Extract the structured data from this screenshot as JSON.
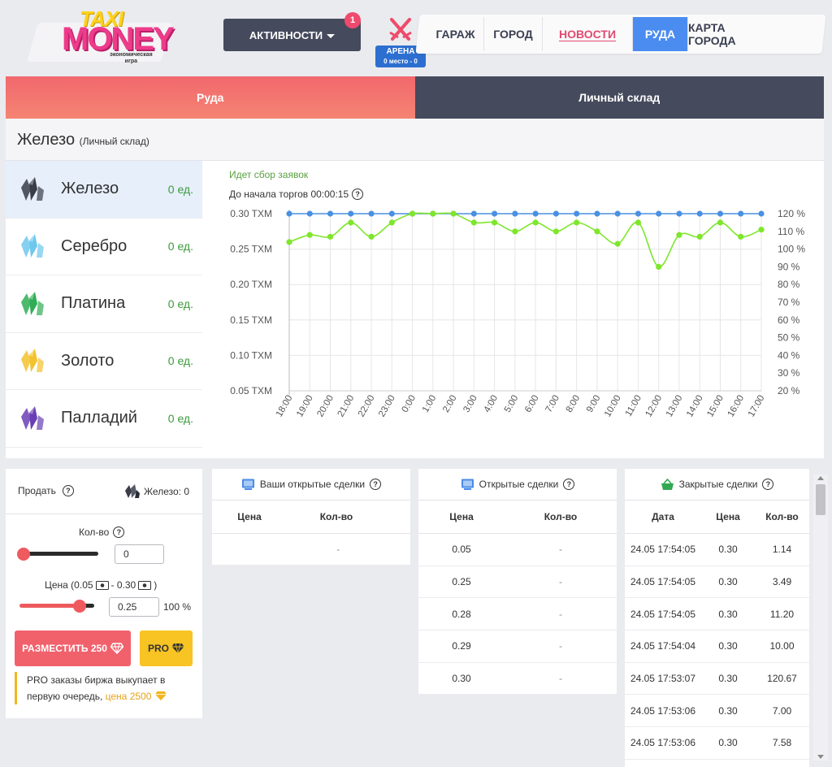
{
  "logo": {
    "taxi": "TAXI",
    "money": "MONEY",
    "subtitle_1": "экономическая",
    "subtitle_2": "игра"
  },
  "header": {
    "activities_label": "АКТИВНОСТИ",
    "activities_badge": "1",
    "arena_label": "АРЕНА",
    "arena_place": "0 место - 0",
    "nav": [
      "ГАРАЖ",
      "ГОРОД",
      "НОВОСТИ",
      "РУДА",
      "КАРТА ГОРОДА"
    ],
    "nav_active": "РУДА"
  },
  "tabs": {
    "ore": "Руда",
    "store": "Личный склад"
  },
  "panel": {
    "title": "Железо",
    "subtitle": "(Личный склад)"
  },
  "ores": [
    {
      "name": "Железо",
      "qty": "0 ед.",
      "icon": "iron-ore-icon",
      "color": "#3a3d47",
      "active": true
    },
    {
      "name": "Серебро",
      "qty": "0 ед.",
      "icon": "silver-ore-icon",
      "color": "#6ec8ee",
      "active": false
    },
    {
      "name": "Платина",
      "qty": "0 ед.",
      "icon": "platinum-ore-icon",
      "color": "#2fae55",
      "active": false
    },
    {
      "name": "Золото",
      "qty": "0 ед.",
      "icon": "gold-ore-icon",
      "color": "#f3c22d",
      "active": false
    },
    {
      "name": "Палладий",
      "qty": "0 ед.",
      "icon": "palladium-ore-icon",
      "color": "#6a3fb5",
      "active": false
    }
  ],
  "chart_status": "Идет сбор заявок",
  "chart_timer": "До начала торгов 00:00:15",
  "chart_data": {
    "type": "line",
    "x": [
      "18:00",
      "19:00",
      "20:00",
      "21:00",
      "22:00",
      "23:00",
      "0:00",
      "1:00",
      "2:00",
      "3:00",
      "4:00",
      "5:00",
      "6:00",
      "7:00",
      "8:00",
      "9:00",
      "10:00",
      "11:00",
      "12:00",
      "13:00",
      "14:00",
      "15:00",
      "16:00",
      "17:00"
    ],
    "y_left_ticks": [
      "0.30 TXM",
      "0.25 TXM",
      "0.20 TXM",
      "0.15 TXM",
      "0.10 TXM",
      "0.05 TXM"
    ],
    "y_left_lim": [
      0.05,
      0.3
    ],
    "y_right_ticks": [
      "120 %",
      "110 %",
      "100 %",
      "90 %",
      "80 %",
      "70 %",
      "60 %",
      "50 %",
      "40 %",
      "30 %",
      "20 %"
    ],
    "y_right_lim": [
      20,
      120
    ],
    "series": [
      {
        "color": "#4a90e2",
        "axis": "left",
        "values": [
          0.3,
          0.3,
          0.3,
          0.3,
          0.3,
          0.3,
          0.3,
          0.3,
          0.3,
          0.3,
          0.3,
          0.3,
          0.3,
          0.3,
          0.3,
          0.3,
          0.3,
          0.3,
          0.3,
          0.3,
          0.3,
          0.3,
          0.3,
          0.3
        ]
      },
      {
        "color": "#7ee62b",
        "axis": "right",
        "values": [
          104,
          108,
          107,
          115,
          107,
          115,
          120,
          120,
          120,
          115,
          115,
          110,
          115,
          110,
          115,
          110,
          103,
          115,
          90,
          108,
          107,
          115,
          107,
          111
        ]
      }
    ]
  },
  "sell": {
    "label": "Продать",
    "have": "Железо: 0",
    "qty_label": "Кол-во",
    "qty_value": "0",
    "qty_fraction": 0,
    "price_label_1": "Цена (0.05",
    "price_label_2": "- 0.30",
    "price_label_3": ")",
    "price_value": "0.25",
    "price_fraction": 0.8,
    "percent": "100 %",
    "place_button": "РАЗМЕСТИТЬ 250",
    "pro_button": "PRO",
    "note_1": "PRO заказы биржа выкупает в первую очередь, ",
    "note_price": "цена 2500"
  },
  "my_deals": {
    "title": "Ваши открытые сделки",
    "cols": [
      "Цена",
      "Кол-во"
    ],
    "rows": [
      [
        "",
        "-"
      ]
    ]
  },
  "open_deals": {
    "title": "Открытые сделки",
    "cols": [
      "Цена",
      "Кол-во"
    ],
    "rows": [
      [
        "0.05",
        "-"
      ],
      [
        "0.25",
        "-"
      ],
      [
        "0.28",
        "-"
      ],
      [
        "0.29",
        "-"
      ],
      [
        "0.30",
        "-"
      ]
    ]
  },
  "closed_deals": {
    "title": "Закрытые сделки",
    "cols": [
      "Дата",
      "Цена",
      "Кол-во"
    ],
    "rows": [
      [
        "24.05 17:54:05",
        "0.30",
        "1.14"
      ],
      [
        "24.05 17:54:05",
        "0.30",
        "3.49"
      ],
      [
        "24.05 17:54:05",
        "0.30",
        "11.20"
      ],
      [
        "24.05 17:54:04",
        "0.30",
        "10.00"
      ],
      [
        "24.05 17:53:07",
        "0.30",
        "120.67"
      ],
      [
        "24.05 17:53:06",
        "0.30",
        "7.00"
      ],
      [
        "24.05 17:53:06",
        "0.30",
        "7.58"
      ]
    ]
  }
}
